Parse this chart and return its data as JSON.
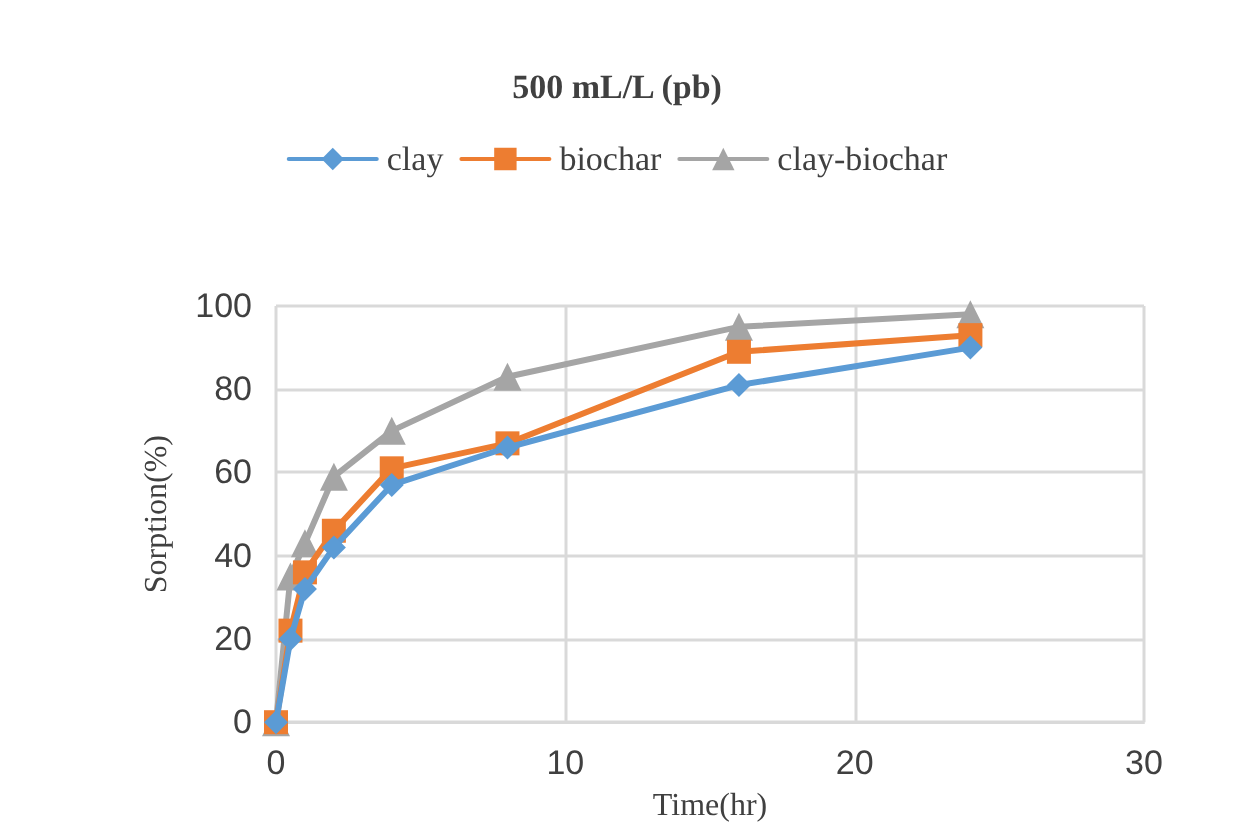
{
  "chart_data": {
    "type": "line",
    "title": "500 mL/L (pb)",
    "xlabel": "Time(hr)",
    "ylabel": "Sorption(%)",
    "x": [
      0,
      0.5,
      1,
      2,
      4,
      8,
      16,
      24
    ],
    "series": [
      {
        "name": "clay",
        "color": "#5b9bd5",
        "marker": "diamond",
        "values": [
          0,
          20,
          32,
          42,
          57,
          66,
          81,
          90
        ]
      },
      {
        "name": "biochar",
        "color": "#ed7d31",
        "marker": "square",
        "values": [
          0,
          22,
          36,
          46,
          61,
          67,
          89,
          93
        ]
      },
      {
        "name": "clay-biochar",
        "color": "#a5a5a5",
        "marker": "triangle",
        "values": [
          0,
          35,
          43,
          59,
          70,
          83,
          95,
          98
        ]
      }
    ],
    "xlim": [
      0,
      30
    ],
    "xticks": [
      0,
      10,
      20,
      30
    ],
    "ylim": [
      0,
      100
    ],
    "yticks": [
      0,
      20,
      40,
      60,
      80,
      100
    ],
    "grid": true,
    "legend": "top",
    "line_style": "solid"
  }
}
